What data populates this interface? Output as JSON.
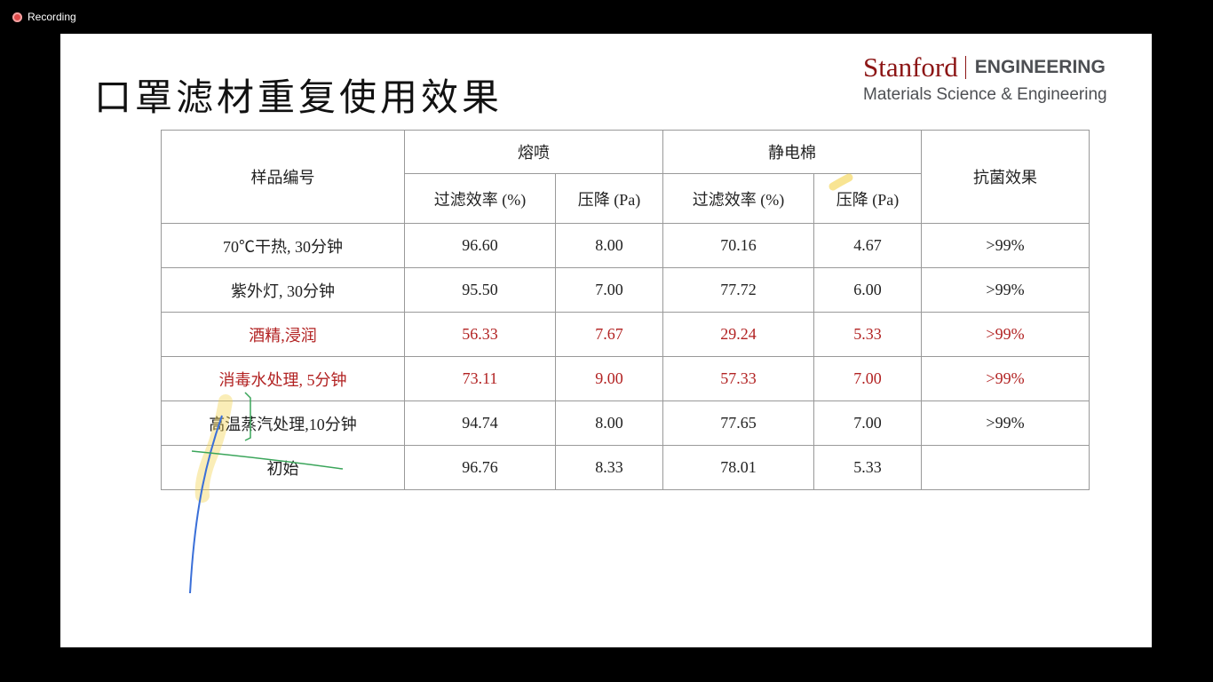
{
  "recording": {
    "label": "Recording"
  },
  "slide": {
    "title": "口罩滤材重复使用效果",
    "logo": {
      "brand": "Stanford",
      "division": "ENGINEERING",
      "department": "Materials Science & Engineering"
    },
    "table": {
      "sample_header": "样品编号",
      "group1": "熔喷",
      "group2": "静电棉",
      "antibacterial_header": "抗菌效果",
      "sub_headers": [
        "过滤效率 (%)",
        "压降 (Pa)",
        "过滤效率 (%)",
        "压降 (Pa)"
      ],
      "rows": [
        {
          "name": "70℃干热, 30分钟",
          "mb_eff": "96.60",
          "mb_dp": "8.00",
          "em_eff": "70.16",
          "em_dp": "4.67",
          "anti": ">99%",
          "highlight": false
        },
        {
          "name": "紫外灯, 30分钟",
          "mb_eff": "95.50",
          "mb_dp": "7.00",
          "em_eff": "77.72",
          "em_dp": "6.00",
          "anti": ">99%",
          "highlight": false
        },
        {
          "name": "酒精,浸润",
          "mb_eff": "56.33",
          "mb_dp": "7.67",
          "em_eff": "29.24",
          "em_dp": "5.33",
          "anti": ">99%",
          "highlight": true
        },
        {
          "name": "消毒水处理, 5分钟",
          "mb_eff": "73.11",
          "mb_dp": "9.00",
          "em_eff": "57.33",
          "em_dp": "7.00",
          "anti": ">99%",
          "highlight": true
        },
        {
          "name": "高温蒸汽处理,10分钟",
          "mb_eff": "94.74",
          "mb_dp": "8.00",
          "em_eff": "77.65",
          "em_dp": "7.00",
          "anti": ">99%",
          "highlight": false
        },
        {
          "name": "初始",
          "mb_eff": "96.76",
          "mb_dp": "8.33",
          "em_eff": "78.01",
          "em_dp": "5.33",
          "anti": "",
          "highlight": false
        }
      ]
    }
  },
  "colors": {
    "highlight_text": "#b22222",
    "brand": "#8c1515"
  }
}
